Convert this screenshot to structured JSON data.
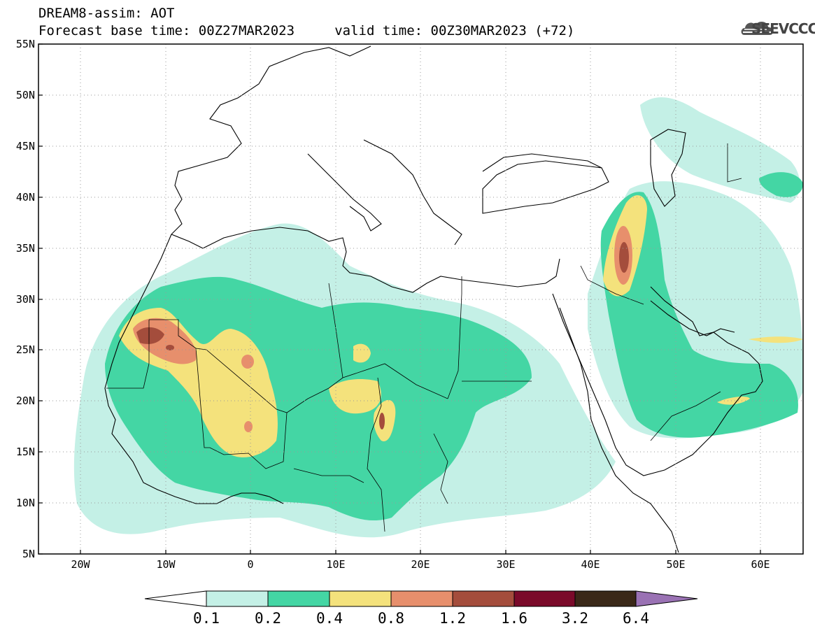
{
  "header": {
    "line1": "DREAM8-assim: AOT",
    "line2": "Forecast base time: 00Z27MAR2023     valid time: 00Z30MAR2023 (+72)"
  },
  "logo": {
    "text": "SEEVCCC",
    "icon": "cloud-icon"
  },
  "map": {
    "projection": "lat-lon",
    "lon_range": [
      -25,
      65
    ],
    "lat_range": [
      5,
      55
    ],
    "lat_ticks": [
      "55N",
      "50N",
      "45N",
      "40N",
      "35N",
      "30N",
      "25N",
      "20N",
      "15N",
      "10N",
      "5N"
    ],
    "lon_ticks": [
      "20W",
      "10W",
      "0",
      "10E",
      "20E",
      "30E",
      "40E",
      "50E",
      "60E"
    ],
    "grid": true
  },
  "colorbar": {
    "labels": [
      "0.1",
      "0.2",
      "0.4",
      "0.8",
      "1.2",
      "1.6",
      "3.2",
      "6.4"
    ],
    "colors": [
      "#ffffff",
      "#c4f0e6",
      "#44d6a4",
      "#f4e27c",
      "#e78f6c",
      "#a44d3c",
      "#7a0a2a",
      "#3a2818",
      "#9a72b4"
    ]
  }
}
